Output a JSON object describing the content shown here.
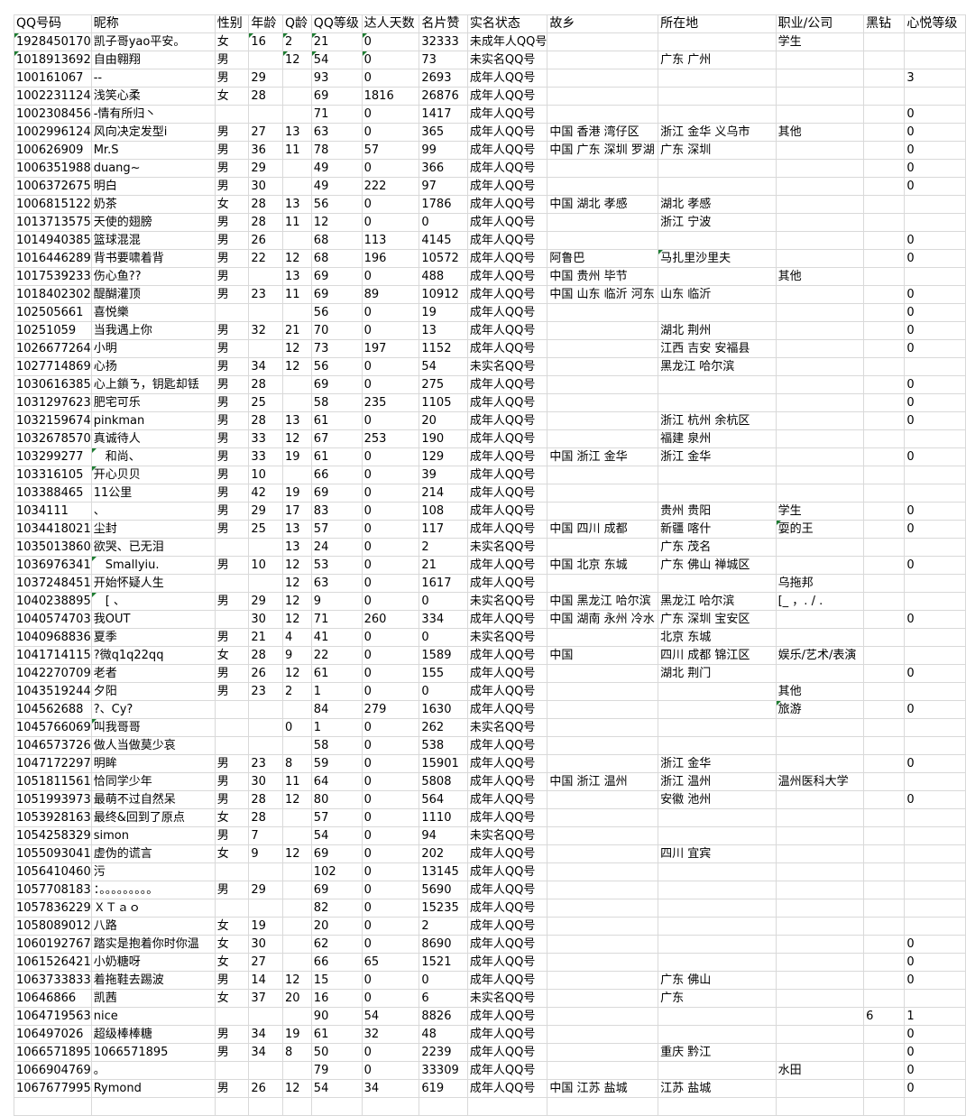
{
  "columns": [
    "QQ号码",
    "昵称",
    "性别",
    "年龄",
    "Q龄",
    "QQ等级",
    "达人天数",
    "名片赞",
    "实名状态",
    "故乡",
    "所在地",
    "职业/公司",
    "黑钻",
    "心悦等级"
  ],
  "rows": [
    [
      "1928450170",
      "凯子哥yao平安。",
      "女",
      "16",
      "2",
      "21",
      "0",
      "32333",
      "未成年人QQ号",
      "",
      "",
      "学生",
      "",
      ""
    ],
    [
      "1018913692",
      "自由翱翔",
      "男",
      "",
      "12",
      "54",
      "0",
      "73",
      "未实名QQ号",
      "",
      "广东 广州",
      "",
      "",
      ""
    ],
    [
      "100161067",
      "--",
      "男",
      "29",
      "",
      "93",
      "0",
      "2693",
      "成年人QQ号",
      "",
      "",
      "",
      "",
      "3"
    ],
    [
      "1002231124",
      "浅笑心柔",
      "女",
      "28",
      "",
      "69",
      "1816",
      "26876",
      "成年人QQ号",
      "",
      "",
      "",
      "",
      ""
    ],
    [
      "1002308456",
      "-情有所归丶",
      "",
      "",
      "",
      "71",
      "0",
      "1417",
      "成年人QQ号",
      "",
      "",
      "",
      "",
      "0"
    ],
    [
      "1002996124",
      "风向决定发型i",
      "男",
      "27",
      "13",
      "63",
      "0",
      "365",
      "成年人QQ号",
      "中国 香港 湾仔区",
      "浙江 金华 义乌市",
      "其他",
      "",
      "0"
    ],
    [
      "100626909",
      "Mr.S",
      "男",
      "36",
      "11",
      "78",
      "57",
      "99",
      "成年人QQ号",
      "中国 广东 深圳 罗湖",
      "广东 深圳",
      "",
      "",
      "0"
    ],
    [
      "1006351988",
      "duang~",
      "男",
      "29",
      "",
      "49",
      "0",
      "366",
      "成年人QQ号",
      "",
      "",
      "",
      "",
      "0"
    ],
    [
      "1006372675",
      "明白",
      "男",
      "30",
      "",
      "49",
      "222",
      "97",
      "成年人QQ号",
      "",
      "",
      "",
      "",
      "0"
    ],
    [
      "1006815122",
      "奶茶",
      "女",
      "28",
      "13",
      "56",
      "0",
      "1786",
      "成年人QQ号",
      "中国 湖北 孝感",
      "湖北 孝感",
      "",
      "",
      ""
    ],
    [
      "1013713575",
      "天使的翅膀",
      "男",
      "28",
      "11",
      "12",
      "0",
      "0",
      "成年人QQ号",
      "",
      "浙江 宁波",
      "",
      "",
      ""
    ],
    [
      "1014940385",
      "篮球混混",
      "男",
      "26",
      "",
      "68",
      "113",
      "4145",
      "成年人QQ号",
      "",
      "",
      "",
      "",
      "0"
    ],
    [
      "1016446289",
      "背书要啸着背",
      "男",
      "22",
      "12",
      "68",
      "196",
      "10572",
      "成年人QQ号",
      "阿鲁巴",
      "马扎里沙里夫",
      "",
      "",
      "0"
    ],
    [
      "1017539233",
      "伤心鱼??",
      "男",
      "",
      "13",
      "69",
      "0",
      "488",
      "成年人QQ号",
      "中国 贵州 毕节",
      "",
      "其他",
      "",
      ""
    ],
    [
      "1018402302",
      "醍醐灌顶",
      "男",
      "23",
      "11",
      "69",
      "89",
      "10912",
      "成年人QQ号",
      "中国 山东 临沂 河东",
      "山东 临沂",
      "",
      "",
      "0"
    ],
    [
      "102505661",
      "喜悦樂",
      "",
      "",
      "",
      "56",
      "0",
      "19",
      "成年人QQ号",
      "",
      "",
      "",
      "",
      "0"
    ],
    [
      "10251059",
      "当我遇上你",
      "男",
      "32",
      "21",
      "70",
      "0",
      "13",
      "成年人QQ号",
      "",
      "湖北 荆州",
      "",
      "",
      "0"
    ],
    [
      "1026677264",
      "小明",
      "男",
      "",
      "12",
      "73",
      "197",
      "1152",
      "成年人QQ号",
      "",
      "江西 吉安 安福县",
      "",
      "",
      "0"
    ],
    [
      "1027714869",
      "心扬",
      "男",
      "34",
      "12",
      "56",
      "0",
      "54",
      "未实名QQ号",
      "",
      "黑龙江 哈尔滨",
      "",
      "",
      ""
    ],
    [
      "1030616385",
      "心上鎖ㄋ，钥匙却铥",
      "男",
      "28",
      "",
      "69",
      "0",
      "275",
      "成年人QQ号",
      "",
      "",
      "",
      "",
      "0"
    ],
    [
      "1031297623",
      "肥宅可乐",
      "男",
      "25",
      "",
      "58",
      "235",
      "1105",
      "成年人QQ号",
      "",
      "",
      "",
      "",
      "0"
    ],
    [
      "1032159674",
      "pinkman",
      "男",
      "28",
      "13",
      "61",
      "0",
      "20",
      "成年人QQ号",
      "",
      "浙江 杭州 余杭区",
      "",
      "",
      "0"
    ],
    [
      "1032678570",
      "真诚待人",
      "男",
      "33",
      "12",
      "67",
      "253",
      "190",
      "成年人QQ号",
      "",
      "福建 泉州",
      "",
      "",
      ""
    ],
    [
      "103299277",
      "　和尚、",
      "男",
      "33",
      "19",
      "61",
      "0",
      "129",
      "成年人QQ号",
      "中国 浙江 金华",
      "浙江 金华",
      "",
      "",
      "0"
    ],
    [
      "103316105",
      "开心贝贝",
      "男",
      "10",
      "",
      "66",
      "0",
      "39",
      "成年人QQ号",
      "",
      "",
      "",
      "",
      ""
    ],
    [
      "103388465",
      "11公里",
      "男",
      "42",
      "19",
      "69",
      "0",
      "214",
      "成年人QQ号",
      "",
      "",
      "",
      "",
      ""
    ],
    [
      "1034111",
      "、",
      "男",
      "29",
      "17",
      "83",
      "0",
      "108",
      "成年人QQ号",
      "",
      "贵州 贵阳",
      "学生",
      "",
      "0"
    ],
    [
      "1034418021",
      "尘封",
      "男",
      "25",
      "13",
      "57",
      "0",
      "117",
      "成年人QQ号",
      "中国 四川 成都",
      "新疆 喀什",
      "耍的王",
      "",
      "0"
    ],
    [
      "1035013860",
      "欲哭、已无泪",
      "",
      "",
      "13",
      "24",
      "0",
      "2",
      "未实名QQ号",
      "",
      "广东 茂名",
      "",
      "",
      ""
    ],
    [
      "1036976341",
      "　Smallyiu.",
      "男",
      "10",
      "12",
      "53",
      "0",
      "21",
      "成年人QQ号",
      "中国 北京 东城",
      "广东 佛山 禅城区",
      "",
      "",
      "0"
    ],
    [
      "1037248451",
      "开始怀疑人生",
      "",
      "",
      "12",
      "63",
      "0",
      "1617",
      "成年人QQ号",
      "",
      "",
      "乌拖邦",
      "",
      ""
    ],
    [
      "1040238895",
      "　[ 、",
      "男",
      "29",
      "12",
      "9",
      "0",
      "0",
      "未实名QQ号",
      "中国 黑龙江 哈尔滨",
      "黑龙江 哈尔滨",
      "[_ ，. / .",
      "",
      ""
    ],
    [
      "1040574703",
      "我OUT",
      "",
      "30",
      "12",
      "71",
      "260",
      "334",
      "成年人QQ号",
      "中国 湖南 永州 冷水",
      "广东 深圳 宝安区",
      "",
      "",
      "0"
    ],
    [
      "1040968836",
      "夏季",
      "男",
      "21",
      "4",
      "41",
      "0",
      "0",
      "未实名QQ号",
      "",
      "北京 东城",
      "",
      "",
      ""
    ],
    [
      "1041714115",
      "?微q1q22qq",
      "女",
      "28",
      "9",
      "22",
      "0",
      "1589",
      "成年人QQ号",
      "中国",
      "四川 成都 锦江区",
      "娱乐/艺术/表演",
      "",
      ""
    ],
    [
      "1042270709",
      "老者",
      "男",
      "26",
      "12",
      "61",
      "0",
      "155",
      "成年人QQ号",
      "",
      "湖北 荆门",
      "",
      "",
      "0"
    ],
    [
      "1043519244",
      "夕阳",
      "男",
      "23",
      "2",
      "1",
      "0",
      "0",
      "成年人QQ号",
      "",
      "",
      "其他",
      "",
      ""
    ],
    [
      "104562688",
      "?、Cy?",
      "",
      "",
      "",
      "84",
      "279",
      "1630",
      "成年人QQ号",
      "",
      "",
      "旅游",
      "",
      "0"
    ],
    [
      "1045766069",
      "叫我哥哥",
      "",
      "",
      "0",
      "1",
      "0",
      "262",
      "未实名QQ号",
      "",
      "",
      "",
      "",
      ""
    ],
    [
      "1046573726",
      "做人当做莫少哀",
      "",
      "",
      "",
      "58",
      "0",
      "538",
      "成年人QQ号",
      "",
      "",
      "",
      "",
      ""
    ],
    [
      "1047172297",
      "明眸",
      "男",
      "23",
      "8",
      "59",
      "0",
      "15901",
      "成年人QQ号",
      "",
      "浙江 金华",
      "",
      "",
      "0"
    ],
    [
      "1051811561",
      "恰同学少年",
      "男",
      "30",
      "11",
      "64",
      "0",
      "5808",
      "成年人QQ号",
      "中国 浙江 温州",
      "浙江 温州",
      "温州医科大学",
      "",
      ""
    ],
    [
      "1051993973",
      "最萌不过自然呆",
      "男",
      "28",
      "12",
      "80",
      "0",
      "564",
      "成年人QQ号",
      "",
      "安徽 池州",
      "",
      "",
      "0"
    ],
    [
      "1053928163",
      "最终&回到了原点",
      "女",
      "28",
      "",
      "57",
      "0",
      "1110",
      "成年人QQ号",
      "",
      "",
      "",
      "",
      ""
    ],
    [
      "1054258329",
      "simon",
      "男",
      "7",
      "",
      "54",
      "0",
      "94",
      "未实名QQ号",
      "",
      "",
      "",
      "",
      ""
    ],
    [
      "1055093041",
      "虚伪的谎言",
      "女",
      "9",
      "12",
      "69",
      "0",
      "202",
      "成年人QQ号",
      "",
      "四川 宜宾",
      "",
      "",
      ""
    ],
    [
      "1056410460",
      "污",
      "",
      "",
      "",
      "102",
      "0",
      "13145",
      "成年人QQ号",
      "",
      "",
      "",
      "",
      ""
    ],
    [
      "1057708183",
      "：。。。。。。。。。",
      "男",
      "29",
      "",
      "69",
      "0",
      "5690",
      "成年人QQ号",
      "",
      "",
      "",
      "",
      ""
    ],
    [
      "1057836229",
      "ＸＴａｏ",
      "",
      "",
      "",
      "82",
      "0",
      "15235",
      "成年人QQ号",
      "",
      "",
      "",
      "",
      ""
    ],
    [
      "1058089012",
      "八路",
      "女",
      "19",
      "",
      "20",
      "0",
      "2",
      "成年人QQ号",
      "",
      "",
      "",
      "",
      ""
    ],
    [
      "1060192767",
      "踏实是抱着你时你温",
      "女",
      "30",
      "",
      "62",
      "0",
      "8690",
      "成年人QQ号",
      "",
      "",
      "",
      "",
      "0"
    ],
    [
      "1061526421",
      "小奶糖呀",
      "女",
      "27",
      "",
      "66",
      "65",
      "1521",
      "成年人QQ号",
      "",
      "",
      "",
      "",
      "0"
    ],
    [
      "1063733833",
      "着拖鞋去踢波",
      "男",
      "14",
      "12",
      "15",
      "0",
      "0",
      "成年人QQ号",
      "",
      "广东 佛山",
      "",
      "",
      "0"
    ],
    [
      "10646866",
      "凯茜",
      "女",
      "37",
      "20",
      "16",
      "0",
      "6",
      "未实名QQ号",
      "",
      "广东",
      "",
      "",
      ""
    ],
    [
      "1064719563",
      "nice",
      "",
      "",
      "",
      "90",
      "54",
      "8826",
      "成年人QQ号",
      "",
      "",
      "",
      "6",
      "1"
    ],
    [
      "106497026",
      "超级棒棒糖",
      "男",
      "34",
      "19",
      "61",
      "32",
      "48",
      "成年人QQ号",
      "",
      "",
      "",
      "",
      "0"
    ],
    [
      "1066571895",
      "1066571895",
      "男",
      "34",
      "8",
      "50",
      "0",
      "2239",
      "成年人QQ号",
      "",
      "重庆 黔江",
      "",
      "",
      "0"
    ],
    [
      "1066904769",
      "。",
      "",
      "",
      "",
      "79",
      "0",
      "33309",
      "成年人QQ号",
      "",
      "",
      "水田",
      "",
      "0"
    ],
    [
      "1067677995",
      "Rymond",
      "男",
      "26",
      "12",
      "54",
      "34",
      "619",
      "成年人QQ号",
      "中国 江苏 盐城",
      "江苏 盐城",
      "",
      "",
      "0"
    ]
  ]
}
